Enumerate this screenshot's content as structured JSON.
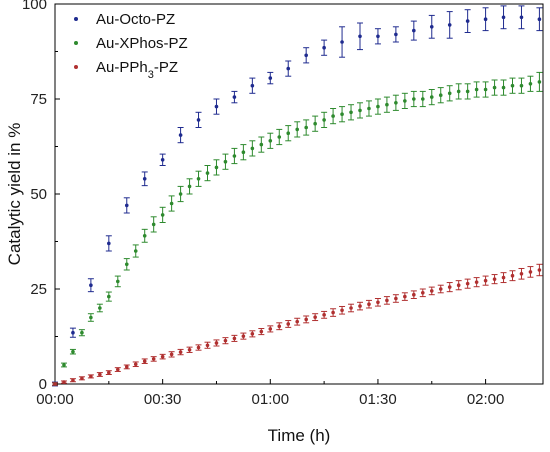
{
  "chart_data": {
    "type": "scatter",
    "xlabel": "Time (h)",
    "ylabel": "Catalytic yield in %",
    "xlim": [
      0,
      136
    ],
    "ylim": [
      0,
      100
    ],
    "x_ticks": [
      {
        "value": 0,
        "label": "00:00"
      },
      {
        "value": 30,
        "label": "00:30"
      },
      {
        "value": 60,
        "label": "01:00"
      },
      {
        "value": 90,
        "label": "01:30"
      },
      {
        "value": 120,
        "label": "02:00"
      }
    ],
    "y_ticks": [
      {
        "value": 0,
        "label": "0"
      },
      {
        "value": 25,
        "label": "25"
      },
      {
        "value": 50,
        "label": "50"
      },
      {
        "value": 75,
        "label": "75"
      },
      {
        "value": 100,
        "label": "100"
      }
    ],
    "legend_position": "top-left",
    "series": [
      {
        "name": "Au-Octo-PZ",
        "legend_label": [
          "Au-Octo-PZ"
        ],
        "color": "#1f2b8f",
        "x": [
          0,
          5,
          10,
          15,
          20,
          25,
          30,
          35,
          40,
          45,
          50,
          55,
          60,
          65,
          70,
          75,
          80,
          85,
          90,
          95,
          100,
          105,
          110,
          115,
          120,
          125,
          130,
          135
        ],
        "y": [
          0,
          13.5,
          26,
          37,
          47,
          54,
          59,
          65.5,
          69.5,
          73,
          75.5,
          78.5,
          80.5,
          83,
          86.5,
          88.5,
          90,
          91.5,
          91.5,
          92,
          93,
          94,
          94.5,
          95.5,
          96,
          96.5,
          96.5,
          96
        ],
        "err": [
          0.5,
          1.2,
          1.7,
          2,
          2,
          1.8,
          1.5,
          2,
          2,
          2,
          1.5,
          2,
          1.5,
          2,
          2,
          2,
          4,
          3.5,
          2,
          2,
          2.5,
          3,
          3.5,
          3,
          3,
          3,
          3,
          3
        ]
      },
      {
        "name": "Au-XPhos-PZ",
        "legend_label": [
          "Au-XPhos-PZ"
        ],
        "color": "#2e8a2e",
        "x": [
          0,
          2.5,
          5,
          7.5,
          10,
          12.5,
          15,
          17.5,
          20,
          22.5,
          25,
          27.5,
          30,
          32.5,
          35,
          37.5,
          40,
          42.5,
          45,
          47.5,
          50,
          52.5,
          55,
          57.5,
          60,
          62.5,
          65,
          67.5,
          70,
          72.5,
          75,
          77.5,
          80,
          82.5,
          85,
          87.5,
          90,
          92.5,
          95,
          97.5,
          100,
          102.5,
          105,
          107.5,
          110,
          112.5,
          115,
          117.5,
          120,
          122.5,
          125,
          127.5,
          130,
          132.5,
          135
        ],
        "y": [
          0,
          5,
          8.5,
          13.5,
          17.5,
          20,
          23,
          27,
          31.5,
          35,
          39,
          42,
          44.5,
          47.5,
          50,
          52,
          54,
          55.5,
          57,
          58.5,
          60,
          61,
          62,
          63,
          64,
          65,
          66,
          67,
          67.5,
          68.5,
          69.5,
          70.5,
          71,
          71.5,
          72,
          72.5,
          73,
          73.5,
          74,
          74.5,
          75,
          75,
          75.5,
          76,
          76.5,
          77,
          77,
          77.5,
          77.5,
          78,
          78,
          78.5,
          78.5,
          79,
          79.5
        ],
        "err": [
          0.3,
          0.5,
          0.6,
          0.8,
          1,
          1,
          1.2,
          1.4,
          1.5,
          1.6,
          1.7,
          2,
          2,
          2,
          2,
          2,
          2,
          2,
          2,
          2,
          2,
          2,
          2,
          2,
          2,
          2,
          2,
          2,
          2,
          2,
          2,
          2,
          2,
          2,
          2,
          2,
          2,
          2,
          2,
          2,
          2,
          2,
          2,
          2,
          2,
          2,
          2,
          2,
          2,
          2,
          2,
          2,
          2,
          2,
          2.5
        ]
      },
      {
        "name": "Au-PPh3-PZ",
        "legend_label": [
          "Au-PPh",
          "3",
          "-PZ"
        ],
        "color": "#b03030",
        "x": [
          0,
          2.5,
          5,
          7.5,
          10,
          12.5,
          15,
          17.5,
          20,
          22.5,
          25,
          27.5,
          30,
          32.5,
          35,
          37.5,
          40,
          42.5,
          45,
          47.5,
          50,
          52.5,
          55,
          57.5,
          60,
          62.5,
          65,
          67.5,
          70,
          72.5,
          75,
          77.5,
          80,
          82.5,
          85,
          87.5,
          90,
          92.5,
          95,
          97.5,
          100,
          102.5,
          105,
          107.5,
          110,
          112.5,
          115,
          117.5,
          120,
          122.5,
          125,
          127.5,
          130,
          132.5,
          135
        ],
        "y": [
          0,
          0.5,
          1,
          1.5,
          2,
          2.5,
          3,
          3.8,
          4.5,
          5.2,
          6,
          6.6,
          7.2,
          7.8,
          8.4,
          9,
          9.6,
          10.2,
          10.8,
          11.4,
          12,
          12.6,
          13.2,
          13.8,
          14.5,
          15.2,
          15.8,
          16.4,
          17,
          17.6,
          18.2,
          18.8,
          19.4,
          20,
          20.5,
          21,
          21.5,
          22,
          22.5,
          23,
          23.5,
          24,
          24.5,
          25,
          25.5,
          26,
          26.4,
          26.8,
          27.2,
          27.6,
          28,
          28.5,
          29,
          29.5,
          30
        ],
        "err": [
          0.3,
          0.3,
          0.4,
          0.4,
          0.4,
          0.5,
          0.5,
          0.5,
          0.5,
          0.6,
          0.6,
          0.6,
          0.6,
          0.7,
          0.7,
          0.7,
          0.7,
          0.8,
          0.8,
          0.8,
          0.8,
          0.8,
          0.8,
          0.8,
          0.8,
          0.9,
          0.9,
          0.9,
          0.9,
          0.9,
          0.9,
          1,
          1,
          1,
          1,
          1,
          1,
          1,
          1,
          1,
          1,
          1,
          1,
          1,
          1.2,
          1.2,
          1.2,
          1.2,
          1.2,
          1.2,
          1.3,
          1.3,
          1.4,
          1.4,
          1.5
        ]
      }
    ]
  }
}
